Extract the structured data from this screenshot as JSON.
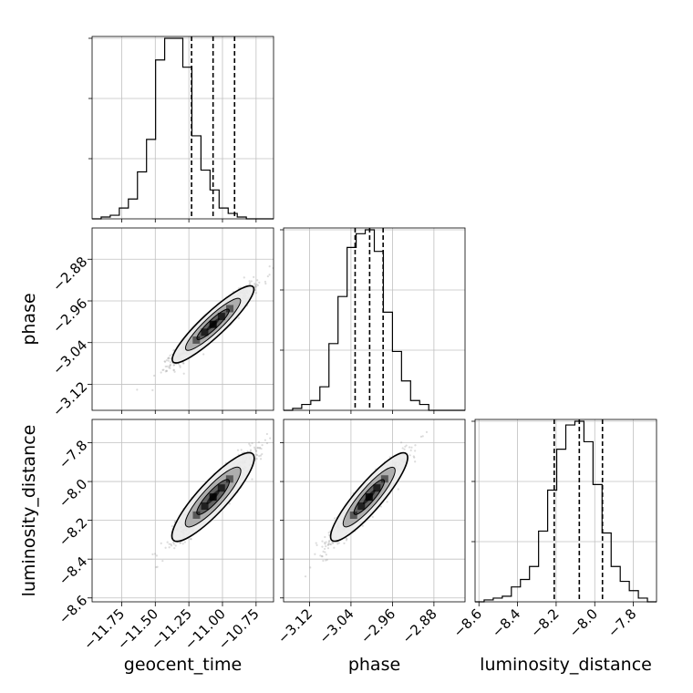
{
  "chart_data": {
    "type": "corner",
    "parameters": [
      "geocent_time",
      "phase",
      "luminosity_distance"
    ],
    "axis_labels": [
      "geocent_time",
      "phase",
      "luminosity_distance"
    ],
    "ranges": [
      [
        -11.97,
        -10.62
      ],
      [
        -3.17,
        -2.82
      ],
      [
        -8.62,
        -7.68
      ]
    ],
    "ticks": [
      [
        -11.75,
        -11.5,
        -11.25,
        -11.0,
        -10.75
      ],
      [
        -3.12,
        -3.04,
        -2.96,
        -2.88
      ],
      [
        -8.6,
        -8.4,
        -8.2,
        -8.0,
        -7.8
      ]
    ],
    "tick_labels": [
      [
        "−11.75",
        "−11.50",
        "−11.25",
        "−11.00",
        "−10.75"
      ],
      [
        "−3.12",
        "−3.04",
        "−2.96",
        "−2.88"
      ],
      [
        "−8.6",
        "−8.4",
        "−8.2",
        "−8.0",
        "−7.8"
      ]
    ],
    "quantiles": [
      [
        -11.23,
        -11.07,
        -10.91
      ],
      [
        -3.032,
        -3.004,
        -2.978
      ],
      [
        -8.21,
        -8.08,
        -7.96
      ]
    ],
    "histograms": [
      {
        "edges_range": [
          -11.97,
          -10.62
        ],
        "bins": 20,
        "counts": [
          0,
          1,
          2,
          6,
          11,
          26,
          44,
          88,
          100,
          100,
          84,
          46,
          27,
          16,
          6,
          3,
          1,
          0,
          0,
          0
        ]
      },
      {
        "edges_range": [
          -3.17,
          -2.82
        ],
        "bins": 20,
        "counts": [
          0,
          1,
          3,
          5,
          12,
          34,
          58,
          83,
          90,
          92,
          81,
          50,
          30,
          15,
          5,
          3,
          0,
          0,
          0,
          0
        ]
      },
      {
        "edges_range": [
          -8.62,
          -7.68
        ],
        "bins": 20,
        "counts": [
          0,
          1,
          2,
          3,
          8,
          12,
          19,
          38,
          60,
          82,
          95,
          97,
          86,
          63,
          37,
          19,
          11,
          6,
          2,
          0
        ]
      }
    ],
    "scatter_pairs": [
      {
        "x": "geocent_time",
        "y": "phase",
        "mean": [
          -11.07,
          -3.005
        ],
        "sd": [
          0.14,
          0.034
        ],
        "corr": 0.95
      },
      {
        "x": "geocent_time",
        "y": "luminosity_distance",
        "mean": [
          -11.07,
          -8.08
        ],
        "sd": [
          0.14,
          0.105
        ],
        "corr": 0.93
      },
      {
        "x": "phase",
        "y": "luminosity_distance",
        "mean": [
          -3.005,
          -8.08
        ],
        "sd": [
          0.034,
          0.105
        ],
        "corr": 0.94
      }
    ],
    "grid": true,
    "title": "",
    "legend": "none"
  }
}
